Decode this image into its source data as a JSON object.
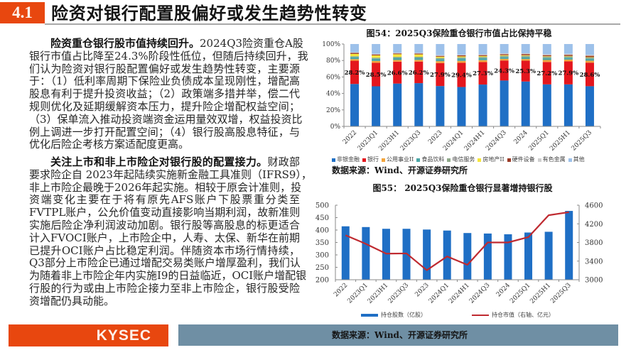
{
  "header": {
    "section_number": "4.1",
    "title": "险资对银行配置股偏好或发生趋势性转变"
  },
  "body": {
    "paragraphs": [
      {
        "lead": "险资重仓银行股市值持续回升。",
        "first_line_rest": "2024Q3险资重仓A股",
        "lines": [
          "银行市值占比降至24.3%阶段性低位，但随后持续回升，我",
          "们认为险资对银行股配置偏好或发生趋势性转变，主要源",
          "于：（1）低利率周期下保险业负债成本呈现刚性，增配高",
          "股息有利于提升投资收益；（2）政策端多措并举，偿二代",
          "规则优化及延期缓解资本压力，提升险企增配权益空间；",
          "（3）保单流入推动投资端资金运用量效双增，权益投资比",
          "例上调进一步打开配置空间；（4）银行股高股息特征，与",
          "优化后险企考核方案适配度更高。"
        ]
      },
      {
        "lead": "关注上市和非上市险企对银行股的配置接力。",
        "first_line_rest": "财政部",
        "lines": [
          "要求险企自 2023年起陆续实施新金融工具准则（IFRS9），",
          "非上市险企最晚于2026年起实施。相较于原会计准则，投",
          "资端变化主要在于将有原先AFS账户下股票重分类至",
          "FVTPL账户，公允价值变动直接影响当期利润，故新准则",
          "实施后险企净利润波动加剧。银行股等高股息的标更适合",
          "计入FVOCI账户，上市险企中，人寿、太保、新华在前期",
          "已提升OCI账户占比稳定利润。伴随资本市场行情持续，",
          "Q3部分上市险企已通过增配交易类账户增厚盈利，我们认",
          "为随着非上市险企年内实施I9的日益临近，OCI账户增配银",
          "行股的行为或由上市险企接力至非上市险企，银行股受险",
          "资增配仍具动能。"
        ]
      }
    ]
  },
  "chart_data": [
    {
      "type": "bar",
      "stacked": true,
      "title": "图54：2025Q3保险重仓银行市值占比保持平稳",
      "xlabel": "",
      "ylabel": "",
      "ylim": [
        0,
        100
      ],
      "yticks": [
        0,
        20,
        40,
        60,
        80,
        100
      ],
      "ytick_suffix": "%",
      "grid": false,
      "legend_position": "bottom",
      "categories": [
        "2022",
        "2023Q1",
        "2023H1",
        "2023Q3",
        "2023",
        "2024Q1",
        "2024H1",
        "2024Q3",
        "2024",
        "2025Q1",
        "2025H1",
        "2025Q3"
      ],
      "series": [
        {
          "name": "非银金融",
          "color": "#1f6fc5",
          "values": [
            51.5,
            48.7,
            52.0,
            52.5,
            49.0,
            47.8,
            50.8,
            55.7,
            54.5,
            51.0,
            51.0,
            48.8
          ]
        },
        {
          "name": "银行",
          "color": "#e4161d",
          "values": [
            28.2,
            28.5,
            26.6,
            26.2,
            27.9,
            29.4,
            27.3,
            24.3,
            25.3,
            27.2,
            27.9,
            28.6
          ]
        },
        {
          "name": "公用事业II",
          "color": "#f3a43b",
          "values": [
            2.0,
            2.2,
            2.0,
            2.0,
            2.3,
            2.3,
            2.3,
            2.0,
            2.0,
            2.4,
            2.2,
            2.3
          ]
        },
        {
          "name": "食品饮料",
          "color": "#4aa6a6",
          "values": [
            2.5,
            2.8,
            2.6,
            2.5,
            2.6,
            3.0,
            2.6,
            2.2,
            2.2,
            2.4,
            2.3,
            2.4
          ]
        },
        {
          "name": "电信服务",
          "color": "#8fa98a",
          "values": [
            1.0,
            1.2,
            1.2,
            1.3,
            1.3,
            1.3,
            1.4,
            1.4,
            1.6,
            1.6,
            1.5,
            1.5
          ]
        },
        {
          "name": "房地产II",
          "color": "#f6e63c",
          "values": [
            2.8,
            2.8,
            3.2,
            2.9,
            1.5,
            1.2,
            1.0,
            0.9,
            0.8,
            0.6,
            0.6,
            0.5
          ]
        },
        {
          "name": "硬件设备",
          "color": "#9b3a25",
          "values": [
            1.2,
            1.1,
            1.0,
            1.0,
            1.0,
            1.2,
            1.1,
            1.2,
            1.4,
            1.3,
            1.4,
            1.6
          ]
        },
        {
          "name": "有色金属",
          "color": "#cfcfcf",
          "values": [
            0.8,
            0.8,
            0.8,
            0.9,
            0.9,
            0.9,
            1.0,
            1.0,
            1.0,
            1.1,
            1.2,
            1.2
          ]
        },
        {
          "name": "其他",
          "color": "#9dc1ea",
          "values": [
            10.0,
            11.9,
            10.6,
            10.7,
            13.5,
            12.9,
            12.5,
            11.3,
            11.2,
            12.4,
            11.9,
            13.1
          ]
        }
      ],
      "data_labels": {
        "series_index": 1,
        "values": [
          "28.2%",
          "28.5%",
          "26.6%",
          "26.2%",
          "27.9%",
          "29.4%",
          "27.3%",
          "24.3%",
          "25.3%",
          "27.2%",
          "27.9%",
          "28.6%"
        ]
      },
      "source": "数据来源：Wind、开源证券研究所"
    },
    {
      "type": "bar+line",
      "title": "图55： 2025Q3保险重仓银行显著增持银行股",
      "xlabel": "",
      "ylabel_left": "持仓股数（亿股）",
      "ylabel_right": "持仓市值（亿元）",
      "ylim_left": [
        200,
        500
      ],
      "yticks_left": [
        200,
        250,
        300,
        350,
        400,
        450,
        500
      ],
      "ylim_right": [
        3000,
        4600
      ],
      "yticks_right": [
        3000,
        3400,
        3800,
        4200,
        4600
      ],
      "grid": false,
      "legend_position": "bottom",
      "categories": [
        "2022",
        "2023Q1",
        "2023H1",
        "2023Q3",
        "2023",
        "2024Q1",
        "2024H1",
        "2024Q3",
        "2024",
        "2025Q1",
        "2025H1",
        "2025Q3"
      ],
      "series": [
        {
          "name": "持仓股数（亿股）",
          "type": "bar",
          "axis": "left",
          "color": "#1f6fc5",
          "values": [
            415,
            412,
            405,
            405,
            402,
            398,
            388,
            386,
            383,
            390,
            393,
            477
          ]
        },
        {
          "name": "持仓市值（右轴、亿元）",
          "type": "line",
          "axis": "right",
          "color": "#bf2a30",
          "values": [
            3955,
            3770,
            3560,
            3565,
            3205,
            3500,
            3320,
            3800,
            3800,
            3915,
            4385,
            4450
          ]
        }
      ],
      "source": "数据来源：Wind、开源证券研究所"
    }
  ],
  "footer": {
    "logo": "KYSEC"
  },
  "colors": {
    "brand_orange": "#e8470f",
    "footer_band": "#6f8fa4",
    "title_rule": "#a9a9a9"
  }
}
